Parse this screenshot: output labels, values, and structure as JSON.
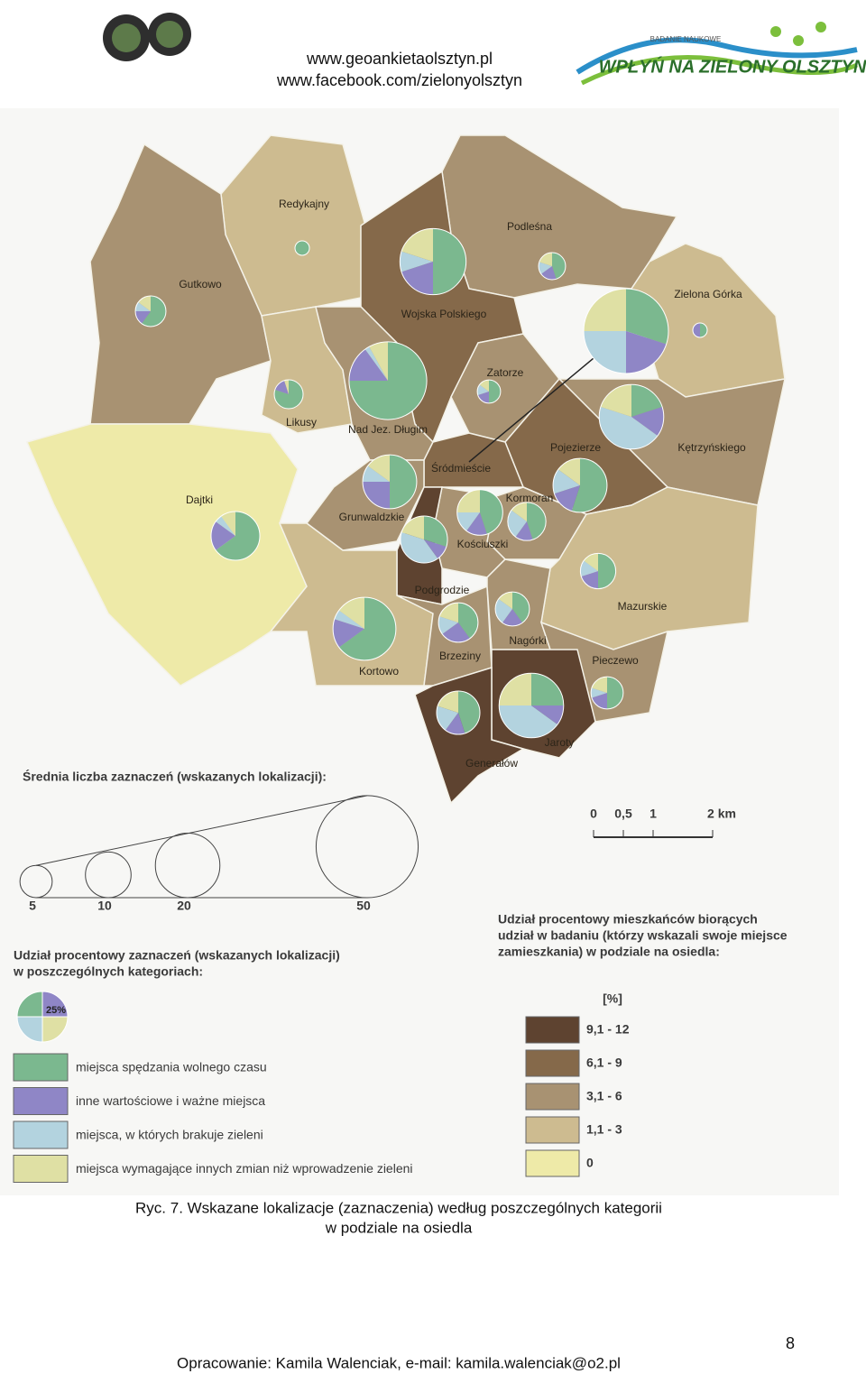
{
  "header": {
    "links": [
      "www.geoankietaolsztyn.pl",
      "www.facebook.com/zielonyolsztyn"
    ]
  },
  "logo": {
    "subtitle": "BADANIE NAUKOWE",
    "title": "WPŁYŃ NA ZIELONY OLSZTYN"
  },
  "map": {
    "districts": [
      {
        "name": "Redykajny",
        "class": 3,
        "mean": 1,
        "shares": [
          100,
          0,
          0,
          0
        ]
      },
      {
        "name": "Gutkowo",
        "class": 2,
        "mean": 4.5,
        "shares": [
          60,
          15,
          10,
          15
        ]
      },
      {
        "name": "Podleśna",
        "class": 2,
        "mean": 3.5,
        "shares": [
          45,
          20,
          15,
          20
        ]
      },
      {
        "name": "Zielona Górka",
        "class": 3,
        "mean": 1,
        "shares": [
          50,
          50,
          0,
          0
        ]
      },
      {
        "name": "Wojska Polskiego",
        "class": 1,
        "mean": 21,
        "shares": [
          50,
          20,
          10,
          20
        ]
      },
      {
        "name": "Zatorze",
        "class": 2,
        "mean": 2.6,
        "shares": [
          50,
          20,
          15,
          15
        ]
      },
      {
        "name": "Likusy",
        "class": 3,
        "mean": 4,
        "shares": [
          80,
          15,
          0,
          5
        ]
      },
      {
        "name": "Nad Jez. Długim",
        "class": 2,
        "mean": 29,
        "shares": [
          75,
          15,
          2,
          8
        ]
      },
      {
        "name": "Kętrzyńskiego",
        "class": 2,
        "mean": 20,
        "shares": [
          20,
          15,
          45,
          20
        ]
      },
      {
        "name": "Pojezierze",
        "class": 1,
        "mean": 14,
        "shares": [
          55,
          15,
          15,
          15
        ]
      },
      {
        "name": "Śródmieście",
        "class": 1,
        "mean": 34.5,
        "shares": [
          30,
          20,
          25,
          25
        ]
      },
      {
        "name": "Dajtki",
        "class": 4,
        "mean": 11.4,
        "shares": [
          65,
          20,
          5,
          10
        ]
      },
      {
        "name": "Grunwaldzkie",
        "class": 2,
        "mean": 14,
        "shares": [
          50,
          25,
          10,
          15
        ]
      },
      {
        "name": "Kormoran",
        "class": 2,
        "mean": 7,
        "shares": [
          45,
          15,
          25,
          15
        ]
      },
      {
        "name": "Kościuszki",
        "class": 2,
        "mean": 10,
        "shares": [
          45,
          15,
          15,
          25
        ]
      },
      {
        "name": "Podgrodzie",
        "class": 0,
        "mean": 10.6,
        "shares": [
          30,
          10,
          40,
          20
        ]
      },
      {
        "name": "Mazurskie",
        "class": 3,
        "mean": 6,
        "shares": [
          50,
          20,
          15,
          15
        ]
      },
      {
        "name": "Kortowo",
        "class": 3,
        "mean": 19,
        "shares": [
          65,
          15,
          5,
          15
        ]
      },
      {
        "name": "Brzeziny",
        "class": 2,
        "mean": 7.5,
        "shares": [
          40,
          25,
          15,
          20
        ]
      },
      {
        "name": "Nagórki",
        "class": 2,
        "mean": 5.6,
        "shares": [
          40,
          20,
          25,
          15
        ]
      },
      {
        "name": "Pieczewo",
        "class": 2,
        "mean": 5,
        "shares": [
          50,
          20,
          10,
          20
        ]
      },
      {
        "name": "Jaroty",
        "class": 0,
        "mean": 20,
        "shares": [
          25,
          10,
          40,
          25
        ]
      },
      {
        "name": "Generałów",
        "class": 0,
        "mean": 9,
        "shares": [
          45,
          15,
          20,
          20
        ]
      }
    ],
    "scale": {
      "labels": [
        "0",
        "0,5",
        "1",
        "2 km"
      ]
    }
  },
  "legend_size": {
    "title": "Średnia liczba zaznaczeń (wskazanych lokalizacji):",
    "values": [
      5,
      10,
      20,
      50
    ]
  },
  "legend_categories": {
    "title": [
      "Udział procentowy zaznaczeń (wskazanych lokalizacji)",
      "w poszczególnych kategoriach:"
    ],
    "sample_label": "25%",
    "items": [
      {
        "label": "miejsca spędzania wolnego czasu",
        "color": "#7bb88f"
      },
      {
        "label": "inne wartościowe i ważne miejsca",
        "color": "#8f86c6"
      },
      {
        "label": "miejsca, w których brakuje zieleni",
        "color": "#b3d3df"
      },
      {
        "label": "miejsca wymagające innych zmian niż wprowadzenie zieleni",
        "color": "#dfe0a4"
      }
    ]
  },
  "legend_classes": {
    "title": [
      "Udział procentowy mieszkańców biorących",
      "udział w badaniu (którzy wskazali swoje miejsce",
      "zamieszkania) w podziale na osiedla:"
    ],
    "unit": "[%]",
    "items": [
      {
        "label": "9,1 - 12",
        "color": "#5e4330"
      },
      {
        "label": "6,1 - 9",
        "color": "#85694a"
      },
      {
        "label": "3,1 - 6",
        "color": "#a89272"
      },
      {
        "label": "1,1 - 3",
        "color": "#cdbb90"
      },
      {
        "label": "0",
        "color": "#eeeaa8"
      }
    ]
  },
  "caption": [
    "Ryc. 7. Wskazane lokalizacje (zaznaczenia) według poszczególnych kategorii",
    "w podziale na osiedla"
  ],
  "page_number": "8",
  "footer": "Opracowanie: Kamila Walenciak, e-mail: kamila.walenciak@o2.pl"
}
